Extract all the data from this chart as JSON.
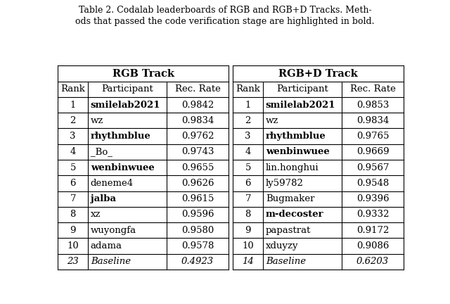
{
  "caption_line1": "Table 2. Codalab leaderboards of RGB and RGB+D Tracks. Meth-",
  "caption_line2": "ods that passed the code verification stage are highlighted in bold.",
  "rgb_header": "RGB Track",
  "rgbd_header": "RGB+D Track",
  "col_headers": [
    "Rank",
    "Participant",
    "Rec. Rate"
  ],
  "rgb_data": [
    [
      "1",
      "smilelab2021",
      "0.9842",
      true,
      false
    ],
    [
      "2",
      "wz",
      "0.9834",
      false,
      false
    ],
    [
      "3",
      "rhythmblue",
      "0.9762",
      true,
      false
    ],
    [
      "4",
      "_Bo_",
      "0.9743",
      false,
      false
    ],
    [
      "5",
      "wenbinwuee",
      "0.9655",
      true,
      false
    ],
    [
      "6",
      "deneme4",
      "0.9626",
      false,
      false
    ],
    [
      "7",
      "jalba",
      "0.9615",
      true,
      false
    ],
    [
      "8",
      "xz",
      "0.9596",
      false,
      false
    ],
    [
      "9",
      "wuyongfa",
      "0.9580",
      false,
      false
    ],
    [
      "10",
      "adama",
      "0.9578",
      false,
      false
    ],
    [
      "23",
      "Baseline",
      "0.4923",
      false,
      true
    ]
  ],
  "rgbd_data": [
    [
      "1",
      "smilelab2021",
      "0.9853",
      true,
      false
    ],
    [
      "2",
      "wz",
      "0.9834",
      false,
      false
    ],
    [
      "3",
      "rhythmblue",
      "0.9765",
      true,
      false
    ],
    [
      "4",
      "wenbinwuee",
      "0.9669",
      true,
      false
    ],
    [
      "5",
      "lin.honghui",
      "0.9567",
      false,
      false
    ],
    [
      "6",
      "ly59782",
      "0.9548",
      false,
      false
    ],
    [
      "7",
      "Bugmaker",
      "0.9396",
      false,
      false
    ],
    [
      "8",
      "m-decoster",
      "0.9332",
      true,
      false
    ],
    [
      "9",
      "papastrat",
      "0.9172",
      false,
      false
    ],
    [
      "10",
      "xduyzy",
      "0.9086",
      false,
      false
    ],
    [
      "14",
      "Baseline",
      "0.6203",
      false,
      true
    ]
  ],
  "bg_color": "#ffffff",
  "line_color": "#000000"
}
